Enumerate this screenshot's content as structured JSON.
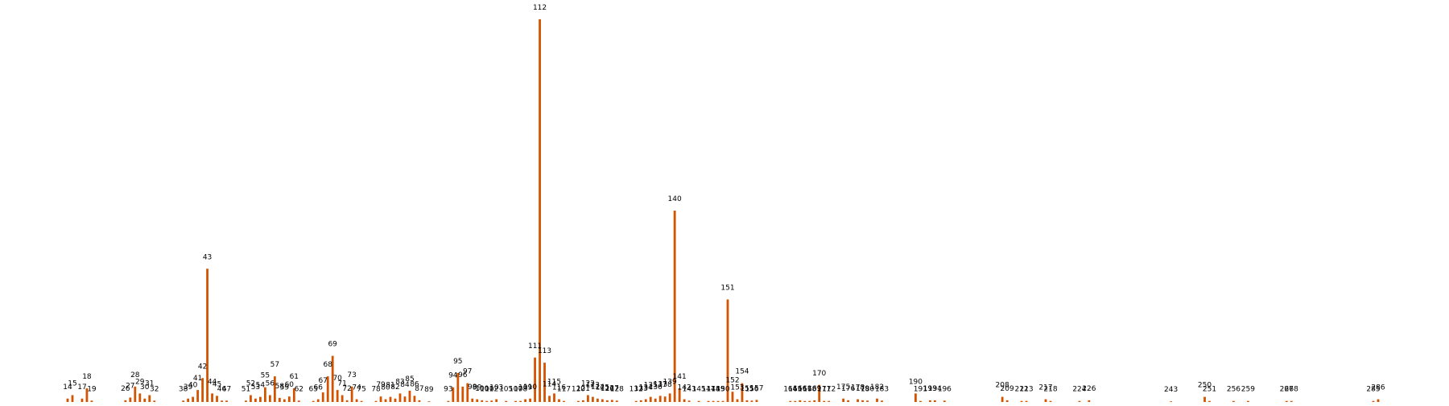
{
  "chart_data": {
    "type": "bar",
    "title": "",
    "xlabel": "",
    "ylabel": "",
    "bar_color": "#D35400",
    "grid": false,
    "axes_visible": false,
    "legend": "none",
    "x_range": [
      14,
      286
    ],
    "ylim": [
      0,
      112
    ],
    "points": [
      {
        "label": "14",
        "x": 14,
        "value": 1
      },
      {
        "label": "15",
        "x": 15,
        "value": 2
      },
      {
        "label": "17",
        "x": 17,
        "value": 1
      },
      {
        "label": "18",
        "x": 18,
        "value": 4
      },
      {
        "label": "19",
        "x": 19,
        "value": 0.4
      },
      {
        "label": "26",
        "x": 26,
        "value": 0.5
      },
      {
        "label": "27",
        "x": 27,
        "value": 1.3
      },
      {
        "label": "28",
        "x": 28,
        "value": 4.5
      },
      {
        "label": "29",
        "x": 29,
        "value": 2.5
      },
      {
        "label": "30",
        "x": 30,
        "value": 1
      },
      {
        "label": "31",
        "x": 31,
        "value": 2
      },
      {
        "label": "32",
        "x": 32,
        "value": 0.4
      },
      {
        "label": "38",
        "x": 38,
        "value": 0.4
      },
      {
        "label": "39",
        "x": 39,
        "value": 1
      },
      {
        "label": "40",
        "x": 40,
        "value": 1.5
      },
      {
        "label": "41",
        "x": 41,
        "value": 3.5
      },
      {
        "label": "42",
        "x": 42,
        "value": 7
      },
      {
        "label": "43",
        "x": 43,
        "value": 39
      },
      {
        "label": "44",
        "x": 44,
        "value": 2.5
      },
      {
        "label": "45",
        "x": 45,
        "value": 1.8
      },
      {
        "label": "46",
        "x": 46,
        "value": 0.4
      },
      {
        "label": "47",
        "x": 47,
        "value": 0.4
      },
      {
        "label": "51",
        "x": 51,
        "value": 0.4
      },
      {
        "label": "52",
        "x": 52,
        "value": 2
      },
      {
        "label": "53",
        "x": 53,
        "value": 1
      },
      {
        "label": "54",
        "x": 54,
        "value": 1.5
      },
      {
        "label": "55",
        "x": 55,
        "value": 4.3
      },
      {
        "label": "56",
        "x": 56,
        "value": 2
      },
      {
        "label": "57",
        "x": 57,
        "value": 7.5
      },
      {
        "label": "58",
        "x": 58,
        "value": 1.2
      },
      {
        "label": "59",
        "x": 59,
        "value": 0.8
      },
      {
        "label": "60",
        "x": 60,
        "value": 1.6
      },
      {
        "label": "61",
        "x": 61,
        "value": 4
      },
      {
        "label": "62",
        "x": 62,
        "value": 0.4
      },
      {
        "label": "65",
        "x": 65,
        "value": 0.3
      },
      {
        "label": "66",
        "x": 66,
        "value": 0.8
      },
      {
        "label": "67",
        "x": 67,
        "value": 2.8
      },
      {
        "label": "68",
        "x": 68,
        "value": 7.5
      },
      {
        "label": "69",
        "x": 69,
        "value": 13.5
      },
      {
        "label": "70",
        "x": 70,
        "value": 3.5
      },
      {
        "label": "71",
        "x": 71,
        "value": 2
      },
      {
        "label": "72",
        "x": 72,
        "value": 0.5
      },
      {
        "label": "73",
        "x": 73,
        "value": 4.5
      },
      {
        "label": "74",
        "x": 74,
        "value": 0.8
      },
      {
        "label": "75",
        "x": 75,
        "value": 0.3
      },
      {
        "label": "78",
        "x": 78,
        "value": 0.3
      },
      {
        "label": "79",
        "x": 79,
        "value": 1.6
      },
      {
        "label": "80",
        "x": 80,
        "value": 0.8
      },
      {
        "label": "81",
        "x": 81,
        "value": 1.5
      },
      {
        "label": "82",
        "x": 82,
        "value": 1
      },
      {
        "label": "83",
        "x": 83,
        "value": 2.5
      },
      {
        "label": "84",
        "x": 84,
        "value": 1.6
      },
      {
        "label": "85",
        "x": 85,
        "value": 3.3
      },
      {
        "label": "86",
        "x": 86,
        "value": 1.8
      },
      {
        "label": "87",
        "x": 87,
        "value": 0.5
      },
      {
        "label": "89",
        "x": 89,
        "value": 0.2
      },
      {
        "label": "93",
        "x": 93,
        "value": 0.3
      },
      {
        "label": "94",
        "x": 94,
        "value": 4.3
      },
      {
        "label": "95",
        "x": 95,
        "value": 8.5
      },
      {
        "label": "96",
        "x": 96,
        "value": 4.5
      },
      {
        "label": "97",
        "x": 97,
        "value": 5.5
      },
      {
        "label": "98",
        "x": 98,
        "value": 1
      },
      {
        "label": "99",
        "x": 99,
        "value": 0.8
      },
      {
        "label": "100",
        "x": 100,
        "value": 0.5
      },
      {
        "label": "101",
        "x": 101,
        "value": 0.3
      },
      {
        "label": "102",
        "x": 102,
        "value": 0.4
      },
      {
        "label": "103",
        "x": 103,
        "value": 0.8
      },
      {
        "label": "105",
        "x": 105,
        "value": 0.3
      },
      {
        "label": "107",
        "x": 107,
        "value": 0.3
      },
      {
        "label": "108",
        "x": 108,
        "value": 0.3
      },
      {
        "label": "109",
        "x": 109,
        "value": 0.8
      },
      {
        "label": "110",
        "x": 110,
        "value": 1
      },
      {
        "label": "111",
        "x": 111,
        "value": 13
      },
      {
        "label": "112",
        "x": 112,
        "value": 112
      },
      {
        "label": "113",
        "x": 113,
        "value": 11.5
      },
      {
        "label": "114",
        "x": 114,
        "value": 1.8
      },
      {
        "label": "115",
        "x": 115,
        "value": 2.5
      },
      {
        "label": "116",
        "x": 116,
        "value": 0.8
      },
      {
        "label": "117",
        "x": 117,
        "value": 0.3
      },
      {
        "label": "120",
        "x": 120,
        "value": 0.3
      },
      {
        "label": "121",
        "x": 121,
        "value": 0.5
      },
      {
        "label": "122",
        "x": 122,
        "value": 2
      },
      {
        "label": "123",
        "x": 123,
        "value": 1.5
      },
      {
        "label": "124",
        "x": 124,
        "value": 1
      },
      {
        "label": "125",
        "x": 125,
        "value": 0.8
      },
      {
        "label": "126",
        "x": 126,
        "value": 0.5
      },
      {
        "label": "127",
        "x": 127,
        "value": 0.6
      },
      {
        "label": "128",
        "x": 128,
        "value": 0.4
      },
      {
        "label": "132",
        "x": 132,
        "value": 0.3
      },
      {
        "label": "133",
        "x": 133,
        "value": 0.5
      },
      {
        "label": "134",
        "x": 134,
        "value": 0.8
      },
      {
        "label": "135",
        "x": 135,
        "value": 1.5
      },
      {
        "label": "136",
        "x": 136,
        "value": 1
      },
      {
        "label": "137",
        "x": 137,
        "value": 1.8
      },
      {
        "label": "138",
        "x": 138,
        "value": 1.6
      },
      {
        "label": "139",
        "x": 139,
        "value": 2.5
      },
      {
        "label": "140",
        "x": 140,
        "value": 56
      },
      {
        "label": "141",
        "x": 141,
        "value": 4
      },
      {
        "label": "142",
        "x": 142,
        "value": 0.8
      },
      {
        "label": "143",
        "x": 143,
        "value": 0.4
      },
      {
        "label": "145",
        "x": 145,
        "value": 0.3
      },
      {
        "label": "147",
        "x": 147,
        "value": 0.3
      },
      {
        "label": "148",
        "x": 148,
        "value": 0.3
      },
      {
        "label": "149",
        "x": 149,
        "value": 0.3
      },
      {
        "label": "150",
        "x": 150,
        "value": 0.3
      },
      {
        "label": "151",
        "x": 151,
        "value": 30
      },
      {
        "label": "152",
        "x": 152,
        "value": 3
      },
      {
        "label": "153",
        "x": 153,
        "value": 0.8
      },
      {
        "label": "154",
        "x": 154,
        "value": 5.5
      },
      {
        "label": "155",
        "x": 155,
        "value": 0.5
      },
      {
        "label": "156",
        "x": 156,
        "value": 0.4
      },
      {
        "label": "157",
        "x": 157,
        "value": 0.6
      },
      {
        "label": "164",
        "x": 164,
        "value": 0.3
      },
      {
        "label": "165",
        "x": 165,
        "value": 0.3
      },
      {
        "label": "166",
        "x": 166,
        "value": 0.5
      },
      {
        "label": "167",
        "x": 167,
        "value": 0.3
      },
      {
        "label": "168",
        "x": 168,
        "value": 0.3
      },
      {
        "label": "169",
        "x": 169,
        "value": 0.5
      },
      {
        "label": "170",
        "x": 170,
        "value": 5
      },
      {
        "label": "171",
        "x": 171,
        "value": 0.3
      },
      {
        "label": "172",
        "x": 172,
        "value": 0.3
      },
      {
        "label": "175",
        "x": 175,
        "value": 1
      },
      {
        "label": "176",
        "x": 176,
        "value": 0.5
      },
      {
        "label": "178",
        "x": 178,
        "value": 0.8
      },
      {
        "label": "179",
        "x": 179,
        "value": 0.5
      },
      {
        "label": "180",
        "x": 180,
        "value": 0.4
      },
      {
        "label": "182",
        "x": 182,
        "value": 1
      },
      {
        "label": "183",
        "x": 183,
        "value": 0.4
      },
      {
        "label": "190",
        "x": 190,
        "value": 2.5
      },
      {
        "label": "191",
        "x": 191,
        "value": 0.3
      },
      {
        "label": "193",
        "x": 193,
        "value": 0.5
      },
      {
        "label": "194",
        "x": 194,
        "value": 0.5
      },
      {
        "label": "196",
        "x": 196,
        "value": 0.4
      },
      {
        "label": "208",
        "x": 208,
        "value": 1.5
      },
      {
        "label": "209",
        "x": 209,
        "value": 0.5
      },
      {
        "label": "212",
        "x": 212,
        "value": 0.3
      },
      {
        "label": "213",
        "x": 213,
        "value": 0.3
      },
      {
        "label": "217",
        "x": 217,
        "value": 0.8
      },
      {
        "label": "218",
        "x": 218,
        "value": 0.3
      },
      {
        "label": "224",
        "x": 224,
        "value": 0.3
      },
      {
        "label": "226",
        "x": 226,
        "value": 0.5
      },
      {
        "label": "243",
        "x": 243,
        "value": 0.2
      },
      {
        "label": "250",
        "x": 250,
        "value": 1.5
      },
      {
        "label": "251",
        "x": 251,
        "value": 0.3
      },
      {
        "label": "256",
        "x": 256,
        "value": 0.3
      },
      {
        "label": "259",
        "x": 259,
        "value": 0.3
      },
      {
        "label": "267",
        "x": 267,
        "value": 0.3
      },
      {
        "label": "268",
        "x": 268,
        "value": 0.3
      },
      {
        "label": "285",
        "x": 285,
        "value": 0.3
      },
      {
        "label": "286",
        "x": 286,
        "value": 0.8
      }
    ]
  }
}
